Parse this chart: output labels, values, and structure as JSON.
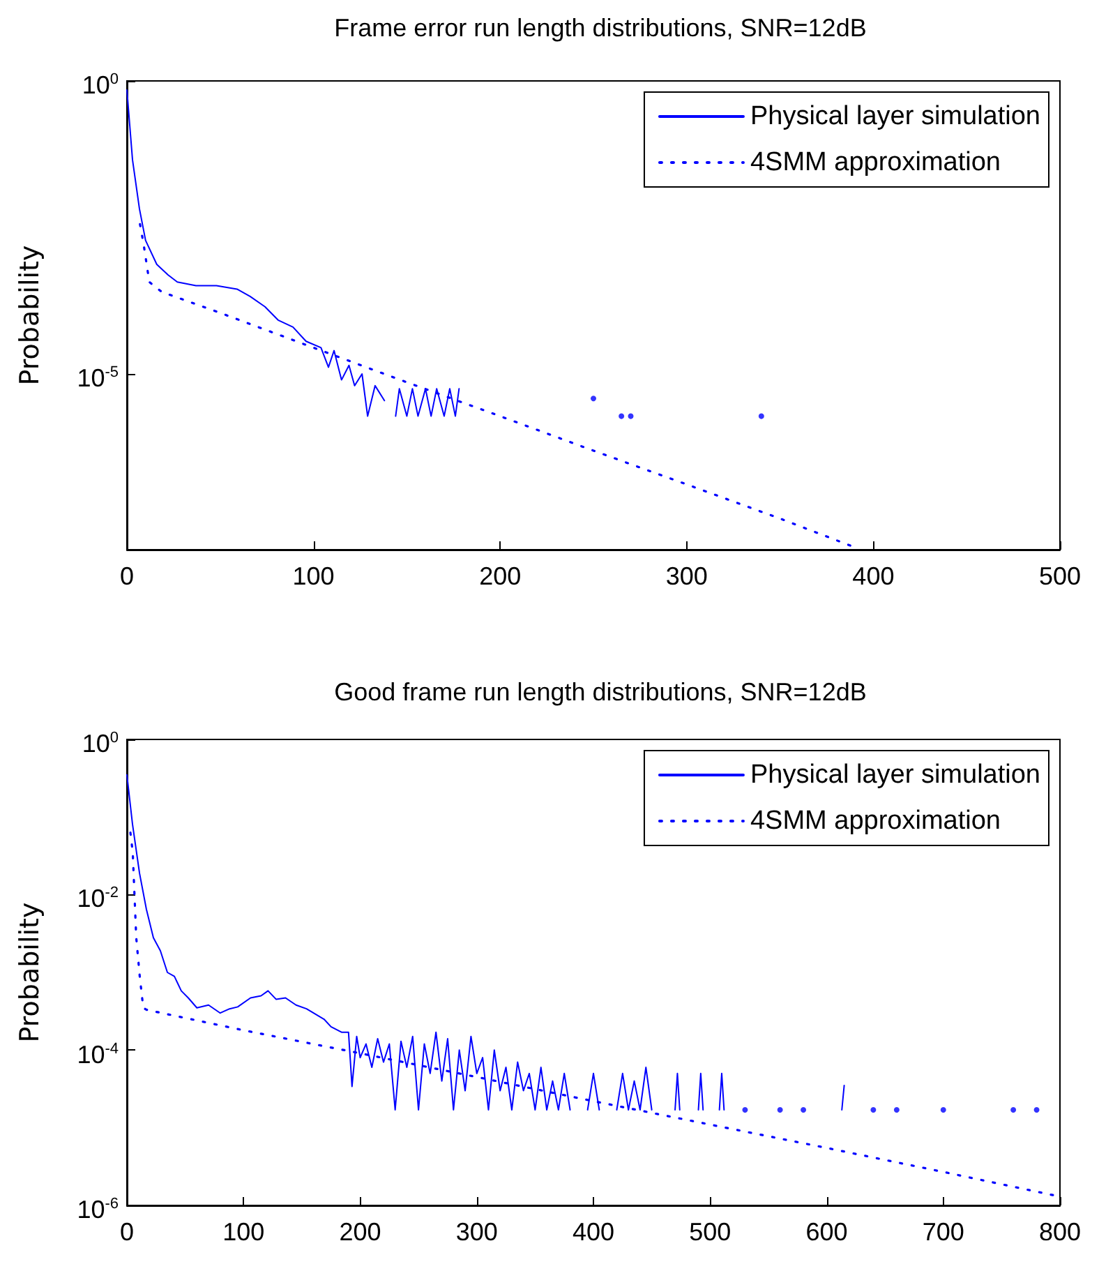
{
  "chart_data": [
    {
      "type": "line",
      "title": "Frame error run length distributions, SNR=12dB",
      "ylabel": "Probability",
      "log": "y",
      "grid": false,
      "legend": "top right",
      "xlim": [
        0,
        500
      ],
      "xticks": [
        0,
        100,
        200,
        300,
        400,
        500
      ],
      "ylim": [
        1e-08,
        1
      ],
      "yticks": [
        {
          "value": 1,
          "label": "10$^{0}$"
        },
        {
          "value": 1e-05,
          "label": "10$^{-5}$"
        }
      ],
      "series": [
        {
          "name": "Physical layer simulation",
          "color": "#0000ff",
          "line_style": "solid",
          "x": [
            0,
            3,
            6.7,
            10,
            16,
            22,
            27,
            37,
            48,
            59,
            66,
            74,
            81,
            89,
            96,
            104,
            108,
            111,
            115,
            119,
            122,
            126,
            129,
            133,
            138,
            140,
            144,
            146,
            150,
            153,
            156,
            160,
            163,
            166,
            170,
            173,
            176,
            178
          ],
          "values": [
            0.7,
            0.045,
            0.0066,
            0.0019,
            0.00074,
            0.00049,
            0.00037,
            0.00032,
            0.00032,
            0.00028,
            0.00021,
            0.00014,
            8.3e-05,
            6.3e-05,
            3.6e-05,
            2.8e-05,
            1.3e-05,
            2.5e-05,
            7.9e-06,
            1.4e-05,
            6.3e-06,
            1e-05,
            1.9e-06,
            6.3e-06,
            3.5e-06,
            null,
            1.9e-06,
            5.6e-06,
            1.9e-06,
            5.6e-06,
            1.9e-06,
            5.6e-06,
            1.9e-06,
            5.6e-06,
            1.9e-06,
            5.6e-06,
            1.9e-06,
            5.6e-06
          ]
        },
        {
          "type": "scatter",
          "marker": "circle",
          "color": "#0000ff",
          "x": [
            250,
            265,
            270,
            340
          ],
          "values": [
            3.8e-06,
            1.9e-06,
            1.9e-06,
            1.9e-06
          ]
        },
        {
          "name": "4SMM approximation",
          "color": "#0000ff",
          "line_style": "dotted",
          "x": [
            7,
            9,
            12,
            18.7,
            50,
            100,
            150,
            200,
            250,
            300,
            350,
            390
          ],
          "values": [
            0.0036,
            0.0016,
            0.00037,
            0.00025,
            0.00011,
            2.8e-05,
            7.2e-06,
            1.9e-06,
            4.9e-07,
            1.3e-07,
            3.4e-08,
            1.1e-08
          ]
        }
      ]
    },
    {
      "type": "line",
      "title": "Good frame run length distributions, SNR=12dB",
      "ylabel": "Probability",
      "log": "y",
      "grid": false,
      "legend": "top right",
      "xlim": [
        0,
        800
      ],
      "xticks": [
        0,
        100,
        200,
        300,
        400,
        500,
        600,
        700,
        800
      ],
      "ylim": [
        1e-06,
        1
      ],
      "yticks": [
        {
          "value": 1,
          "label": "10$^{0}$"
        },
        {
          "value": 0.01,
          "label": "10$^{-2}$"
        },
        {
          "value": 0.0001,
          "label": "10$^{-4}$"
        },
        {
          "value": 1e-06,
          "label": "10$^{-6}$"
        }
      ],
      "series": [
        {
          "name": "Physical layer simulation",
          "color": "#0000ff",
          "line_style": "solid",
          "x": [
            0,
            4.8,
            10.8,
            16.7,
            22.7,
            28.7,
            34.7,
            40.7,
            46.6,
            52.6,
            60,
            70,
            80,
            88,
            95,
            106,
            115,
            121,
            128,
            136,
            145,
            154,
            160,
            169,
            175,
            184,
            190,
            193,
            197,
            200,
            205,
            210,
            215,
            220,
            225,
            230,
            235,
            240,
            245,
            250,
            255,
            260,
            265,
            270,
            275,
            280,
            285,
            290,
            295,
            300,
            305,
            310,
            315,
            320,
            325,
            330,
            335,
            340,
            345,
            350,
            355,
            360,
            365,
            370,
            375,
            380,
            390,
            395,
            400,
            405,
            410,
            420,
            425,
            430,
            435,
            440,
            445,
            450,
            455,
            470,
            472,
            474,
            478,
            490,
            492,
            494,
            498,
            508,
            510,
            512,
            514,
            613,
            615
          ],
          "values": [
            0.35,
            0.081,
            0.019,
            0.0065,
            0.0028,
            0.0019,
            0.001,
            0.00089,
            0.00058,
            0.00047,
            0.00035,
            0.00038,
            0.0003,
            0.00034,
            0.00036,
            0.00047,
            0.0005,
            0.00058,
            0.00045,
            0.00047,
            0.00038,
            0.00034,
            0.0003,
            0.00025,
            0.0002,
            0.00017,
            0.00017,
            3.4e-05,
            0.00015,
            8e-05,
            0.00012,
            6e-05,
            0.00014,
            7e-05,
            0.00012,
            1.7e-05,
            0.00013,
            6e-05,
            0.00015,
            1.7e-05,
            0.00012,
            5e-05,
            0.00017,
            4e-05,
            0.00014,
            1.7e-05,
            0.0001,
            3e-05,
            0.00015,
            5e-05,
            8e-05,
            1.7e-05,
            0.0001,
            3e-05,
            6e-05,
            1.7e-05,
            7e-05,
            3e-05,
            5e-05,
            1.7e-05,
            6e-05,
            1.7e-05,
            4e-05,
            1.7e-05,
            5e-05,
            1.7e-05,
            null,
            1.7e-05,
            5e-05,
            1.7e-05,
            null,
            1.7e-05,
            5e-05,
            1.7e-05,
            4e-05,
            1.7e-05,
            6e-05,
            1.7e-05,
            null,
            1.7e-05,
            5e-05,
            1.7e-05,
            null,
            1.7e-05,
            5e-05,
            1.7e-05,
            null,
            1.7e-05,
            5e-05,
            1.7e-05,
            null,
            1.7e-05,
            3.5e-05
          ]
        },
        {
          "type": "scatter",
          "marker": "circle",
          "color": "#0000ff",
          "x": [
            530,
            560,
            580,
            640,
            660,
            700,
            760,
            780
          ],
          "values": [
            1.7e-05,
            1.7e-05,
            1.7e-05,
            1.7e-05,
            1.7e-05,
            1.7e-05,
            1.7e-05,
            1.7e-05
          ]
        },
        {
          "name": "4SMM approximation",
          "color": "#0000ff",
          "line_style": "dotted",
          "x": [
            3,
            5,
            8,
            11,
            14,
            17,
            100,
            200,
            300,
            400,
            500,
            600,
            700,
            800
          ],
          "values": [
            0.063,
            0.035,
            0.0028,
            0.00089,
            0.00035,
            0.00033,
            0.00018,
            9.1e-05,
            4.5e-05,
            2.2e-05,
            1.1e-05,
            5.5e-06,
            2.7e-06,
            1.3e-06
          ]
        }
      ]
    }
  ]
}
